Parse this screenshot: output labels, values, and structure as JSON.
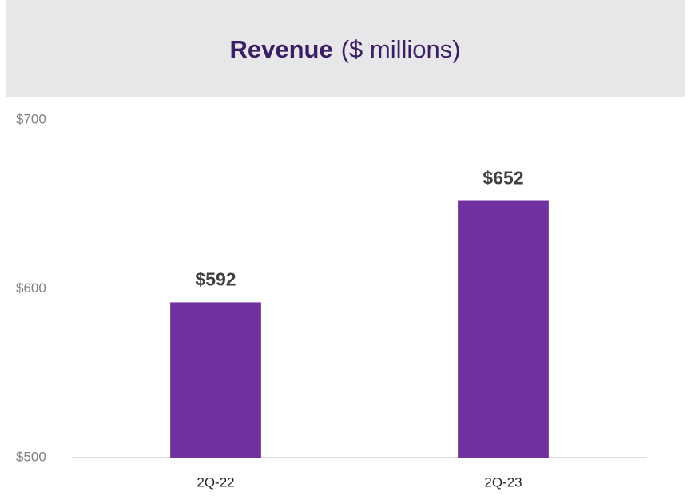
{
  "chart_data": {
    "type": "bar",
    "title": "Revenue",
    "subtitle": "($ millions)",
    "categories": [
      "2Q-22",
      "2Q-23"
    ],
    "values": [
      592,
      652
    ],
    "value_labels": [
      "$592",
      "$652"
    ],
    "color": "#7030a0",
    "ylim": [
      500,
      700
    ],
    "yticks": [
      {
        "value": 500,
        "label": "$500"
      },
      {
        "value": 600,
        "label": "$600"
      },
      {
        "value": 700,
        "label": "$700"
      }
    ],
    "grid": false
  }
}
